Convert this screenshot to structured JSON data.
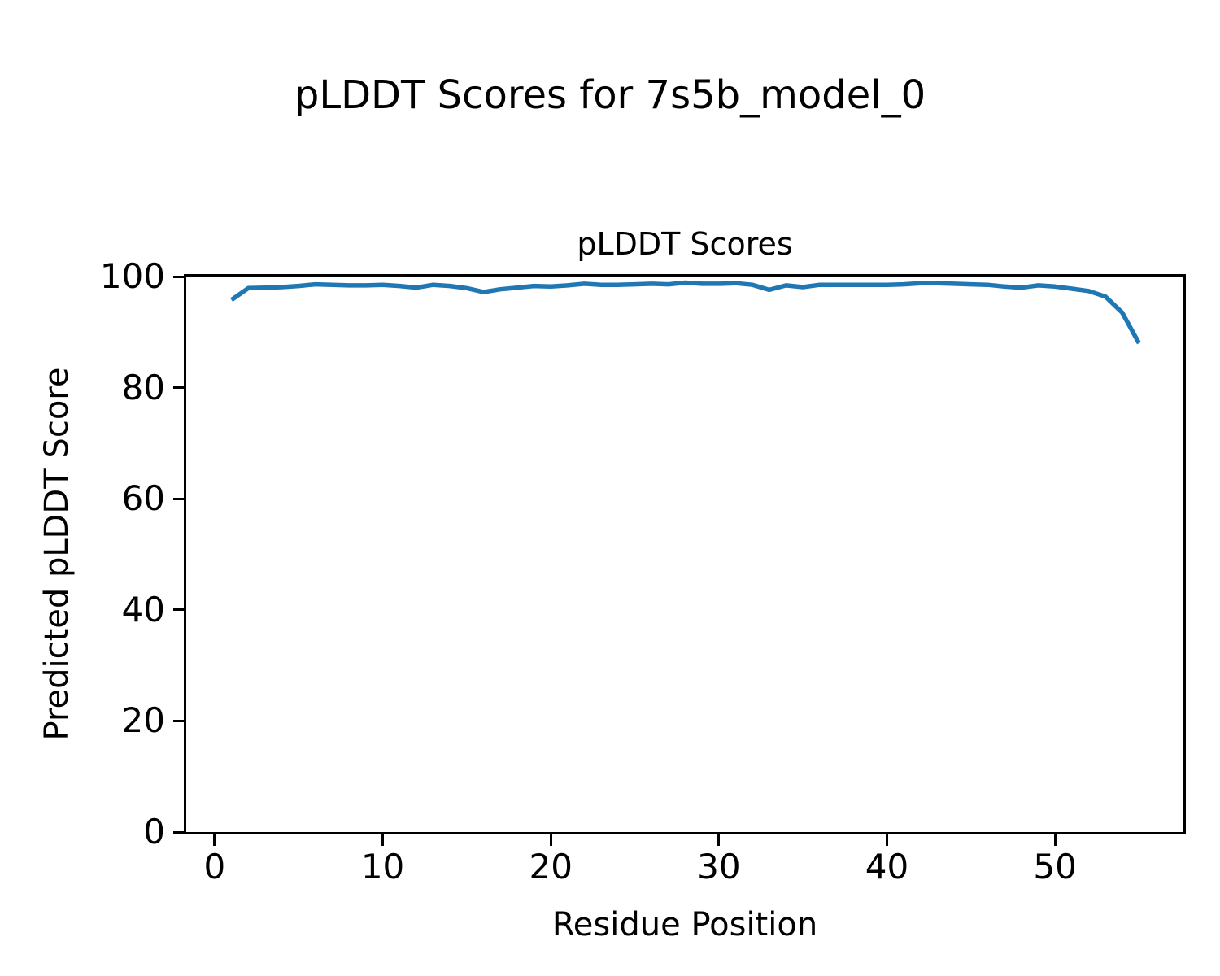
{
  "figure": {
    "suptitle": "pLDDT Scores for 7s5b_model_0"
  },
  "chart_data": {
    "type": "line",
    "title": "pLDDT Scores",
    "xlabel": "Residue Position",
    "ylabel": "Predicted pLDDT Score",
    "series": [
      {
        "name": "pLDDT",
        "x": [
          1,
          2,
          3,
          4,
          5,
          6,
          7,
          8,
          9,
          10,
          11,
          12,
          13,
          14,
          15,
          16,
          17,
          18,
          19,
          20,
          21,
          22,
          23,
          24,
          25,
          26,
          27,
          28,
          29,
          30,
          31,
          32,
          33,
          34,
          35,
          36,
          37,
          38,
          39,
          40,
          41,
          42,
          43,
          44,
          45,
          46,
          47,
          48,
          49,
          50,
          51,
          52,
          53,
          54,
          55
        ],
        "y": [
          95.8,
          97.9,
          98.0,
          98.1,
          98.3,
          98.6,
          98.5,
          98.4,
          98.4,
          98.5,
          98.3,
          98.0,
          98.5,
          98.3,
          97.9,
          97.2,
          97.7,
          98.0,
          98.3,
          98.2,
          98.4,
          98.7,
          98.5,
          98.5,
          98.6,
          98.7,
          98.6,
          98.9,
          98.7,
          98.7,
          98.8,
          98.5,
          97.6,
          98.4,
          98.1,
          98.5,
          98.5,
          98.5,
          98.5,
          98.5,
          98.6,
          98.8,
          98.8,
          98.7,
          98.6,
          98.5,
          98.2,
          98.0,
          98.4,
          98.2,
          97.8,
          97.4,
          96.4,
          93.5,
          88.0
        ]
      }
    ],
    "line_color": "#1f77b4",
    "xticks": [
      0,
      10,
      20,
      30,
      40,
      50
    ],
    "yticks": [
      0,
      20,
      40,
      60,
      80,
      100
    ],
    "xlim": [
      -1.69,
      57.64
    ],
    "ylim": [
      0,
      100
    ],
    "grid": false,
    "legend": "none",
    "background_color": "#ffffff",
    "text_color": "#000000"
  }
}
